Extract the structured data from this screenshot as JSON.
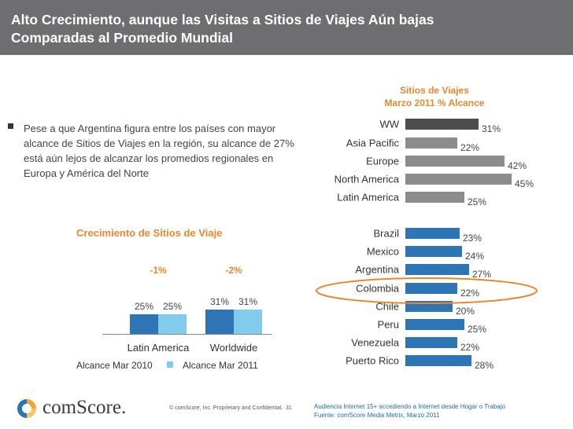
{
  "header": {
    "title_line1": "Alto Crecimiento, aunque las Visitas a Sitios de Viajes Aún bajas",
    "title_line2": "Comparadas al Promedio Mundial"
  },
  "bullet": "Pese a que Argentina figura entre los países con mayor alcance de Sitios de Viajes en la región, su alcance de 27% está aún lejos de alcanzar los promedios regionales en Europa y América del Norte",
  "colors": {
    "header": "#6e6e70",
    "accent": "#e9872b",
    "blue": "#2e75b6",
    "lightblue": "#83cbec",
    "dark": "#4d4d4d",
    "gray": "#8c8c8c"
  },
  "chart_data": [
    {
      "type": "bar",
      "orientation": "horizontal",
      "title": "Sitios de Viajes",
      "subtitle": "Marzo 2011 % Alcance",
      "xlim": [
        0,
        45
      ],
      "categories": [
        "WW",
        "Asia Pacific",
        "Europe",
        "North America",
        "Latin America",
        "Brazil",
        "Mexico",
        "Argentina",
        "Colombia",
        "Chile",
        "Peru",
        "Venezuela",
        "Puerto Rico"
      ],
      "values": [
        31,
        22,
        42,
        45,
        25,
        23,
        24,
        27,
        22,
        20,
        25,
        22,
        28
      ],
      "labels": [
        "31%",
        "22%",
        "42%",
        "45%",
        "25%",
        "23%",
        "24%",
        "27%",
        "22%",
        "20%",
        "25%",
        "22%",
        "28%"
      ],
      "groups": [
        "global",
        "region",
        "region",
        "region",
        "region",
        "country",
        "country",
        "country",
        "country",
        "country",
        "country",
        "country",
        "country"
      ],
      "highlight": "Colombia"
    },
    {
      "type": "bar",
      "title": "Crecimiento de Sitios de Viaje",
      "categories": [
        "Latin America",
        "Worldwide"
      ],
      "series": [
        {
          "name": "Alcance Mar 2010",
          "values": [
            25,
            31
          ],
          "labels": [
            "25%",
            "31%"
          ]
        },
        {
          "name": "Alcance Mar 2011",
          "values": [
            25,
            31
          ],
          "labels": [
            "25%",
            "31%"
          ]
        }
      ],
      "growth": [
        "-1%",
        "-2%"
      ],
      "ylim": [
        0,
        50
      ]
    }
  ],
  "footer": {
    "brand": "comScore.",
    "copyright": "© comScore, Inc.  Proprietary and Confidential.",
    "page": "31",
    "source_line1": "Audiencia Internet 15+ accediendo a Internet desde Hogar o Trabajo",
    "source_line2": "Fuente:  comScore Media Metrix, Marzo 2011"
  }
}
